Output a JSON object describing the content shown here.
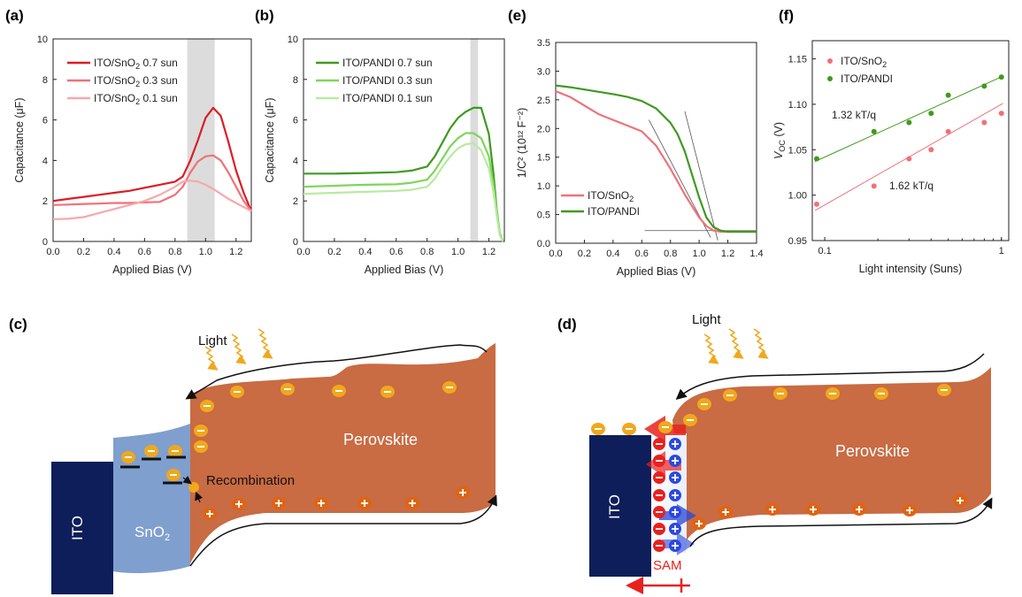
{
  "chart_data": [
    {
      "id": "a",
      "type": "line",
      "panel_label": "(a)",
      "xlabel": "Applied Bias (V)",
      "ylabel": "Capacitance (μF)",
      "xlim": [
        0,
        1.3
      ],
      "ylim": [
        0,
        10
      ],
      "xticks": [
        "0.0",
        "0.2",
        "0.4",
        "0.6",
        "0.8",
        "1.0",
        "1.2"
      ],
      "yticks": [
        "0",
        "2",
        "4",
        "6",
        "8",
        "10"
      ],
      "shaded_x": [
        0.88,
        1.06
      ],
      "series": [
        {
          "name": "ITO/SnO",
          "sub": "2",
          "suffix": " 0.7 sun",
          "color": "#dd1c25",
          "x": [
            0,
            0.1,
            0.2,
            0.3,
            0.4,
            0.5,
            0.6,
            0.7,
            0.8,
            0.85,
            0.9,
            0.95,
            1.0,
            1.05,
            1.1,
            1.15,
            1.2,
            1.25,
            1.3
          ],
          "y": [
            2.0,
            2.1,
            2.2,
            2.3,
            2.4,
            2.5,
            2.65,
            2.8,
            2.95,
            3.2,
            4.0,
            5.0,
            6.1,
            6.6,
            6.2,
            4.9,
            3.5,
            2.4,
            1.5
          ]
        },
        {
          "name": "ITO/SnO",
          "sub": "2",
          "suffix": " 0.3 sun",
          "color": "#f07178",
          "x": [
            0,
            0.1,
            0.2,
            0.3,
            0.4,
            0.5,
            0.6,
            0.7,
            0.8,
            0.85,
            0.9,
            0.95,
            1.0,
            1.05,
            1.1,
            1.15,
            1.2,
            1.25,
            1.3
          ],
          "y": [
            1.8,
            1.82,
            1.85,
            1.87,
            1.9,
            1.9,
            1.93,
            1.95,
            2.3,
            2.7,
            3.4,
            3.95,
            4.2,
            4.25,
            4.0,
            3.4,
            2.7,
            2.0,
            1.5
          ]
        },
        {
          "name": "ITO/SnO",
          "sub": "2",
          "suffix": " 0.1 sun",
          "color": "#f7a8ac",
          "x": [
            0,
            0.1,
            0.2,
            0.3,
            0.4,
            0.5,
            0.6,
            0.7,
            0.8,
            0.85,
            0.9,
            0.95,
            1.0,
            1.05,
            1.1,
            1.15,
            1.2,
            1.25,
            1.3
          ],
          "y": [
            1.1,
            1.12,
            1.2,
            1.4,
            1.6,
            1.8,
            2.0,
            2.3,
            2.7,
            2.95,
            3.0,
            2.95,
            2.8,
            2.6,
            2.35,
            2.1,
            1.9,
            1.7,
            1.5
          ]
        }
      ]
    },
    {
      "id": "b",
      "type": "line",
      "panel_label": "(b)",
      "xlabel": "Applied Bias (V)",
      "ylabel": "Capacitance (μF)",
      "xlim": [
        0,
        1.3
      ],
      "ylim": [
        0,
        10
      ],
      "xticks": [
        "0.0",
        "0.2",
        "0.4",
        "0.6",
        "0.8",
        "1.0",
        "1.2"
      ],
      "yticks": [
        "0",
        "2",
        "4",
        "6",
        "8",
        "10"
      ],
      "shaded_x": [
        1.08,
        1.13
      ],
      "series": [
        {
          "name": "ITO/PANDI 0.7 sun",
          "color": "#3f9a1f",
          "x": [
            0,
            0.2,
            0.4,
            0.6,
            0.7,
            0.8,
            0.85,
            0.9,
            0.95,
            1.0,
            1.05,
            1.1,
            1.15,
            1.2,
            1.23,
            1.25,
            1.27,
            1.29
          ],
          "y": [
            3.35,
            3.35,
            3.38,
            3.42,
            3.5,
            3.7,
            4.2,
            4.9,
            5.6,
            6.1,
            6.4,
            6.6,
            6.6,
            5.3,
            3.3,
            1.6,
            0.4,
            0
          ]
        },
        {
          "name": "ITO/PANDI 0.3 sun",
          "color": "#7dd65a",
          "x": [
            0,
            0.2,
            0.4,
            0.6,
            0.7,
            0.8,
            0.85,
            0.9,
            0.95,
            1.0,
            1.05,
            1.1,
            1.15,
            1.2,
            1.23,
            1.25,
            1.27,
            1.29
          ],
          "y": [
            2.7,
            2.75,
            2.8,
            2.82,
            2.9,
            3.05,
            3.5,
            4.1,
            4.7,
            5.1,
            5.35,
            5.35,
            5.1,
            4.2,
            2.8,
            1.5,
            0.4,
            0
          ]
        },
        {
          "name": "ITO/PANDI 0.1 sun",
          "color": "#b7eba0",
          "x": [
            0,
            0.2,
            0.4,
            0.6,
            0.7,
            0.8,
            0.85,
            0.9,
            0.95,
            1.0,
            1.05,
            1.1,
            1.15,
            1.2,
            1.23,
            1.25,
            1.27,
            1.29
          ],
          "y": [
            2.35,
            2.4,
            2.45,
            2.5,
            2.55,
            2.7,
            3.1,
            3.7,
            4.2,
            4.6,
            4.8,
            4.85,
            4.5,
            3.6,
            2.4,
            1.3,
            0.3,
            0
          ]
        }
      ]
    },
    {
      "id": "e",
      "type": "line",
      "panel_label": "(e)",
      "xlabel": "Applied Bias (V)",
      "ylabel": "1/C² (10¹² F⁻²)",
      "xlim": [
        0,
        1.4
      ],
      "ylim": [
        0,
        3.5
      ],
      "xticks": [
        "0.0",
        "0.2",
        "0.4",
        "0.6",
        "0.8",
        "1.0",
        "1.2",
        "1.4"
      ],
      "yticks": [
        "0.0",
        "0.5",
        "1.0",
        "1.5",
        "2.0",
        "2.5",
        "3.0",
        "3.5"
      ],
      "series": [
        {
          "name": "ITO/SnO",
          "sub": "2",
          "suffix": "",
          "color": "#f07178",
          "x": [
            0,
            0.1,
            0.2,
            0.3,
            0.4,
            0.5,
            0.6,
            0.7,
            0.8,
            0.9,
            1.0,
            1.05,
            1.1,
            1.15,
            1.2,
            1.3,
            1.4
          ],
          "y": [
            2.65,
            2.55,
            2.4,
            2.25,
            2.15,
            2.05,
            1.95,
            1.7,
            1.3,
            0.85,
            0.45,
            0.3,
            0.22,
            0.2,
            0.2,
            0.2,
            0.2
          ]
        },
        {
          "name": "ITO/PANDI",
          "color": "#3f9a1f",
          "x": [
            0,
            0.1,
            0.2,
            0.3,
            0.4,
            0.5,
            0.6,
            0.7,
            0.8,
            0.85,
            0.9,
            0.95,
            1.0,
            1.05,
            1.1,
            1.15,
            1.2,
            1.3,
            1.4
          ],
          "y": [
            2.75,
            2.72,
            2.68,
            2.64,
            2.6,
            2.55,
            2.48,
            2.35,
            2.1,
            1.9,
            1.6,
            1.2,
            0.8,
            0.45,
            0.28,
            0.22,
            0.2,
            0.2,
            0.2
          ]
        }
      ],
      "fit_lines": [
        {
          "x": [
            0.65,
            1.08
          ],
          "y": [
            2.15,
            0.1
          ]
        },
        {
          "x": [
            0.9,
            1.13
          ],
          "y": [
            2.3,
            0.05
          ]
        },
        {
          "x": [
            0.62,
            1.4
          ],
          "y": [
            0.22,
            0.22
          ]
        }
      ]
    },
    {
      "id": "f",
      "type": "scatter",
      "panel_label": "(f)",
      "xlabel": "Light intensity (Suns)",
      "ylabel": "V",
      "ylabel_sub": "OC",
      "ylabel_suffix": " (V)",
      "xscale": "log",
      "xlim": [
        0.085,
        1.1
      ],
      "ylim": [
        0.95,
        1.17
      ],
      "xticks": [
        "0.1",
        "1"
      ],
      "yticks": [
        "0.95",
        "1.00",
        "1.05",
        "1.10",
        "1.15"
      ],
      "series": [
        {
          "name": "ITO/SnO",
          "sub": "2",
          "suffix": "",
          "color": "#f07178",
          "x": [
            0.09,
            0.19,
            0.3,
            0.4,
            0.5,
            0.8,
            1.0
          ],
          "y": [
            0.99,
            1.01,
            1.04,
            1.05,
            1.07,
            1.08,
            1.09
          ],
          "fit": {
            "x": [
              0.088,
              1.02
            ],
            "y": [
              0.983,
              1.101
            ]
          }
        },
        {
          "name": "ITO/PANDI",
          "color": "#3f9a1f",
          "x": [
            0.09,
            0.19,
            0.3,
            0.4,
            0.5,
            0.8,
            1.0
          ],
          "y": [
            1.04,
            1.07,
            1.08,
            1.09,
            1.11,
            1.12,
            1.13
          ],
          "fit": {
            "x": [
              0.088,
              1.02
            ],
            "y": [
              1.037,
              1.131
            ]
          }
        }
      ],
      "annotations": [
        "1.32 kT/q",
        "1.62 kT/q"
      ]
    }
  ],
  "diagram_c": {
    "panel_label": "(c)",
    "light": "Light",
    "ito": "ITO",
    "sno2": "SnO",
    "sno2_sub": "2",
    "perovskite": "Perovskite",
    "recombination": "Recombination"
  },
  "diagram_d": {
    "panel_label": "(d)",
    "light": "Light",
    "ito": "ITO",
    "perovskite": "Perovskite",
    "sam": "SAM"
  },
  "colors": {
    "ito": "#0d1e5a",
    "sno2": "#7f9fce",
    "perovskite": "#c96b43",
    "electron": "#f0a81c",
    "hole": "#e06411",
    "light": "#f0a81c"
  }
}
